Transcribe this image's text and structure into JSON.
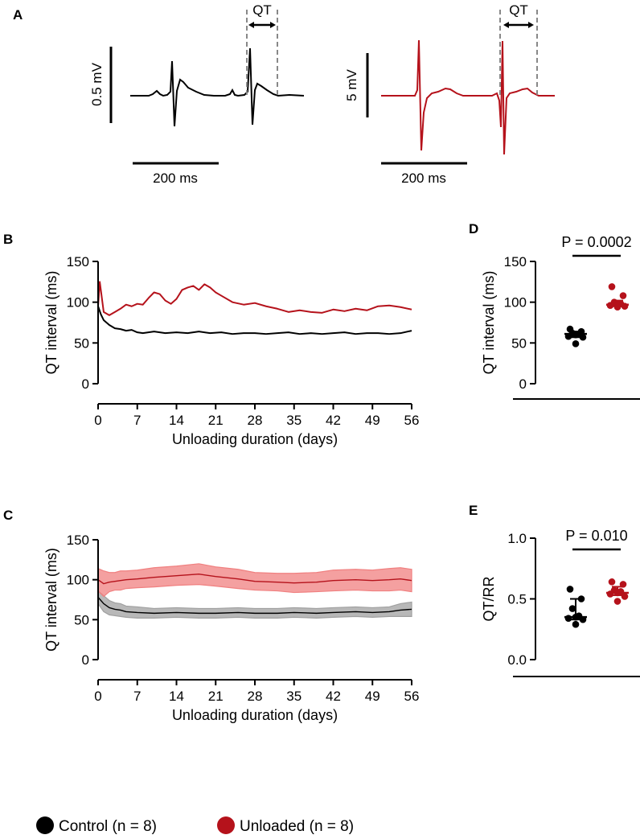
{
  "colors": {
    "control": "#000000",
    "unloaded": "#b5121b",
    "unloaded_band": "#f08080",
    "control_band": "#a0a0a0",
    "guide": "#888888"
  },
  "legend": {
    "control_label": "Control (n = 8)",
    "unloaded_label": "Unloaded (n = 8)"
  },
  "panels": {
    "A": {
      "letter": "A",
      "qt_label": "QT",
      "left_scale_label": "0.5 mV",
      "right_scale_label": "5 mV",
      "left_time_label": "200 ms",
      "right_time_label": "200 ms"
    },
    "B": {
      "letter": "B"
    },
    "C": {
      "letter": "C"
    },
    "D": {
      "letter": "D"
    },
    "E": {
      "letter": "E"
    }
  },
  "chart_data": [
    {
      "panel": "B",
      "type": "line",
      "title": "",
      "xlabel": "Unloading duration (days)",
      "ylabel": "QT interval (ms)",
      "xlim": [
        0,
        56
      ],
      "ylim": [
        0,
        150
      ],
      "xticks": [
        0,
        7,
        14,
        21,
        28,
        35,
        42,
        49,
        56
      ],
      "yticks": [
        0,
        50,
        100,
        150
      ],
      "series": [
        {
          "name": "Control",
          "color": "#000000",
          "x": [
            0,
            0.5,
            1,
            2,
            3,
            4,
            5,
            6,
            7,
            8,
            10,
            12,
            14,
            16,
            18,
            20,
            22,
            24,
            26,
            28,
            30,
            32,
            34,
            36,
            38,
            40,
            42,
            44,
            46,
            48,
            50,
            52,
            54,
            56
          ],
          "values": [
            95,
            85,
            78,
            72,
            68,
            67,
            65,
            66,
            63,
            62,
            64,
            62,
            63,
            62,
            64,
            62,
            63,
            61,
            62,
            62,
            61,
            62,
            63,
            61,
            62,
            61,
            62,
            63,
            61,
            62,
            62,
            61,
            62,
            65
          ]
        },
        {
          "name": "Unloaded",
          "color": "#b5121b",
          "x": [
            0,
            0.3,
            1,
            2,
            3,
            4,
            5,
            6,
            7,
            8,
            9,
            10,
            11,
            12,
            13,
            14,
            15,
            16,
            17,
            18,
            19,
            20,
            21,
            22,
            24,
            26,
            28,
            30,
            32,
            34,
            36,
            38,
            40,
            42,
            44,
            46,
            48,
            50,
            52,
            54,
            56
          ],
          "values": [
            95,
            125,
            88,
            84,
            88,
            92,
            97,
            95,
            98,
            97,
            105,
            112,
            110,
            102,
            98,
            104,
            115,
            118,
            120,
            115,
            122,
            118,
            112,
            108,
            100,
            97,
            99,
            95,
            92,
            88,
            90,
            88,
            87,
            91,
            89,
            92,
            90,
            95,
            96,
            94,
            91
          ]
        }
      ]
    },
    {
      "panel": "C",
      "type": "area",
      "title": "",
      "xlabel": "Unloading duration (days)",
      "ylabel": "QT interval (ms)",
      "xlim": [
        0,
        56
      ],
      "ylim": [
        0,
        150
      ],
      "xticks": [
        0,
        7,
        14,
        21,
        28,
        35,
        42,
        49,
        56
      ],
      "yticks": [
        0,
        50,
        100,
        150
      ],
      "series": [
        {
          "name": "Control",
          "color": "#000000",
          "band_color": "#a0a0a0",
          "x": [
            0,
            1,
            2,
            3,
            4,
            5,
            7,
            10,
            14,
            18,
            21,
            25,
            28,
            32,
            35,
            39,
            42,
            46,
            49,
            52,
            54,
            56
          ],
          "values": [
            78,
            70,
            65,
            63,
            62,
            60,
            59,
            58,
            59,
            58,
            58,
            59,
            58,
            58,
            59,
            58,
            59,
            60,
            59,
            60,
            62,
            63
          ],
          "sd": [
            8,
            10,
            9,
            8,
            8,
            7,
            7,
            6,
            6,
            6,
            6,
            6,
            6,
            6,
            6,
            6,
            6,
            6,
            6,
            6,
            8,
            9
          ]
        },
        {
          "name": "Unloaded",
          "color": "#b5121b",
          "band_color": "#f08080",
          "x": [
            0,
            1,
            2,
            3,
            4,
            5,
            7,
            10,
            14,
            18,
            21,
            25,
            28,
            32,
            35,
            39,
            42,
            46,
            49,
            52,
            54,
            56
          ],
          "values": [
            100,
            95,
            97,
            98,
            99,
            100,
            101,
            103,
            105,
            107,
            104,
            101,
            98,
            97,
            96,
            97,
            99,
            100,
            99,
            100,
            101,
            99
          ],
          "sd": [
            14,
            16,
            12,
            11,
            12,
            11,
            11,
            12,
            12,
            13,
            12,
            12,
            11,
            11,
            12,
            12,
            13,
            13,
            13,
            14,
            14,
            14
          ]
        }
      ]
    },
    {
      "panel": "D",
      "type": "scatter",
      "title": "",
      "xlabel": "",
      "ylabel": "QT interval (ms)",
      "ylim": [
        0,
        150
      ],
      "yticks": [
        0,
        50,
        100,
        150
      ],
      "stat_label": "P = 0.0002",
      "groups": [
        {
          "name": "Control",
          "color": "#000000",
          "values": [
            67,
            64,
            62,
            61,
            60,
            58,
            57,
            49
          ],
          "median": 61,
          "q1": 57,
          "q3": 64
        },
        {
          "name": "Unloaded",
          "color": "#b5121b",
          "values": [
            119,
            108,
            100,
            98,
            97,
            96,
            95,
            94
          ],
          "median": 97,
          "q1": 95,
          "q3": 102
        }
      ]
    },
    {
      "panel": "E",
      "type": "scatter",
      "title": "",
      "xlabel": "",
      "ylabel": "QT/RR",
      "ylim": [
        0,
        1.0
      ],
      "yticks": [
        0.0,
        0.5,
        1.0
      ],
      "stat_label": "P = 0.010",
      "groups": [
        {
          "name": "Control",
          "color": "#000000",
          "values": [
            0.58,
            0.5,
            0.42,
            0.36,
            0.35,
            0.34,
            0.33,
            0.29
          ],
          "median": 0.35,
          "q1": 0.33,
          "q3": 0.5
        },
        {
          "name": "Unloaded",
          "color": "#b5121b",
          "values": [
            0.64,
            0.62,
            0.57,
            0.56,
            0.55,
            0.54,
            0.52,
            0.48
          ],
          "median": 0.55,
          "q1": 0.53,
          "q3": 0.6
        }
      ]
    }
  ]
}
